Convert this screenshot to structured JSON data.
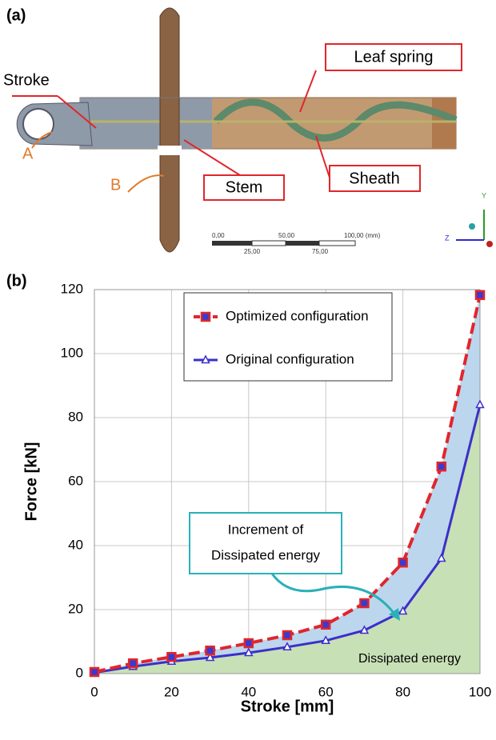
{
  "panel_a": {
    "label": "(a)",
    "stroke": "Stroke",
    "a": "A",
    "b": "B",
    "leaf_spring": "Leaf spring",
    "stem": "Stem",
    "sheath": "Sheath",
    "scale": {
      "top": [
        "0,00",
        "50,00",
        "100,00 (mm)"
      ],
      "bottom": [
        "25,00",
        "75,00"
      ]
    },
    "axis_y": "Y",
    "axis_z": "Z"
  },
  "chart_data": {
    "type": "line",
    "panel_label": "(b)",
    "xlabel": "Stroke [mm]",
    "ylabel": "Force  [kN]",
    "x": [
      0,
      10,
      20,
      30,
      40,
      50,
      60,
      70,
      80,
      90,
      100
    ],
    "series": [
      {
        "name": "Optimized configuration",
        "color": "#e0262c",
        "marker_color": "#3a3ad0",
        "values": [
          0.5,
          3.2,
          5.2,
          7.2,
          9.5,
          12,
          15.3,
          22,
          34.7,
          64.7,
          118.3
        ]
      },
      {
        "name": "Original configuration",
        "color": "#3b2fc9",
        "values": [
          0.3,
          2.2,
          3.8,
          5,
          6.5,
          8.3,
          10.3,
          13.5,
          19.5,
          36,
          84
        ]
      }
    ],
    "xlim": [
      0,
      100
    ],
    "ylim": [
      0,
      120
    ],
    "xticks": [
      0,
      20,
      40,
      60,
      80,
      100
    ],
    "yticks": [
      0,
      20,
      40,
      60,
      80,
      100,
      120
    ],
    "grid": true,
    "area_colors": [
      "#bcd6ee",
      "#c8e0b6"
    ],
    "increment_label": [
      "Increment of",
      "Dissipated energy"
    ],
    "area_label": "Dissipated energy"
  }
}
